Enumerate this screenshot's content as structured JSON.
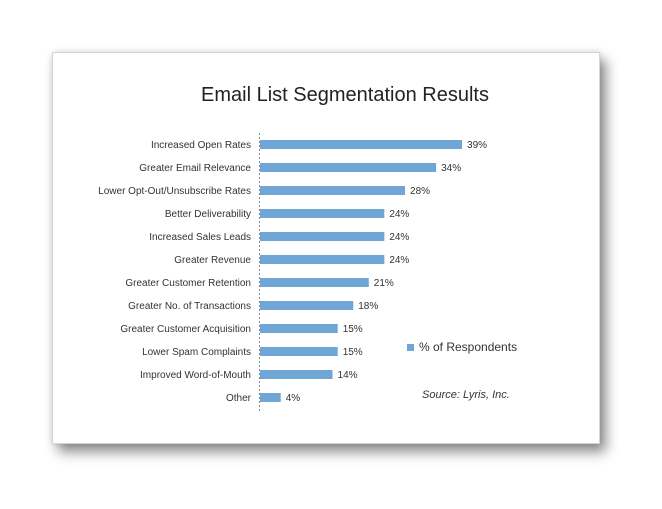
{
  "chart_data": {
    "type": "bar",
    "orientation": "horizontal",
    "title": "Email List Segmentation Results",
    "categories": [
      "Increased Open Rates",
      "Greater Email Relevance",
      "Lower Opt-Out/Unsubscribe Rates",
      "Better Deliverability",
      "Increased Sales Leads",
      "Greater Revenue",
      "Greater Customer Retention",
      "Greater No. of Transactions",
      "Greater Customer Acquisition",
      "Lower Spam Complaints",
      "Improved Word-of-Mouth",
      "Other"
    ],
    "series": [
      {
        "name": "% of Respondents",
        "values": [
          39,
          34,
          28,
          24,
          24,
          24,
          21,
          18,
          15,
          15,
          14,
          4
        ],
        "labels": [
          "39%",
          "34%",
          "28%",
          "24%",
          "24%",
          "24%",
          "21%",
          "18%",
          "15%",
          "15%",
          "14%",
          "4%"
        ]
      }
    ],
    "xlim": [
      0,
      50
    ],
    "grid": false,
    "legend_position": "right",
    "bar_color": "#6fa6d6",
    "source": "Source: Lyris, Inc."
  }
}
